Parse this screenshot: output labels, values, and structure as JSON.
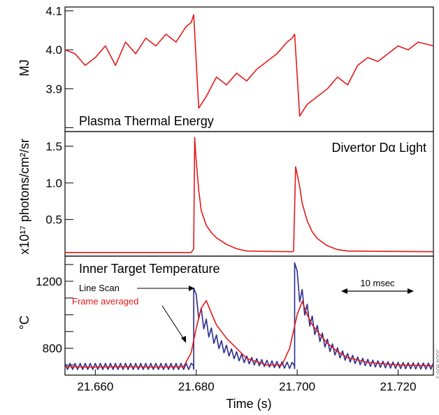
{
  "figure_id": "JG04 605-3",
  "chart_data": [
    {
      "type": "line",
      "panel": "top",
      "title": "Plasma Thermal Energy",
      "ylabel": "MJ",
      "xlim": [
        21.654,
        21.727
      ],
      "ylim": [
        3.79,
        4.11
      ],
      "yticks": [
        3.8,
        3.9,
        4.0,
        4.1
      ],
      "ytick_labels": [
        "",
        "3.9",
        "4.0",
        "4.1"
      ],
      "color": "#e41a1c",
      "series": [
        {
          "x": [
            21.654,
            21.656,
            21.658,
            21.66,
            21.662,
            21.664,
            21.666,
            21.668,
            21.67,
            21.672,
            21.674,
            21.676,
            21.678,
            21.679,
            21.6795,
            21.6805,
            21.682,
            21.684,
            21.686,
            21.688,
            21.69,
            21.692,
            21.694,
            21.696,
            21.698,
            21.699,
            21.6995,
            21.7005,
            21.702,
            21.704,
            21.706,
            21.708,
            21.71,
            21.712,
            21.714,
            21.716,
            21.718,
            21.72,
            21.722,
            21.724,
            21.727
          ],
          "values": [
            4.0,
            3.99,
            3.96,
            3.98,
            4.01,
            3.96,
            4.02,
            3.99,
            4.03,
            4.01,
            4.04,
            4.02,
            4.06,
            4.07,
            4.09,
            3.85,
            3.88,
            3.93,
            3.91,
            3.94,
            3.92,
            3.95,
            3.97,
            3.99,
            4.02,
            4.03,
            4.04,
            3.83,
            3.86,
            3.88,
            3.9,
            3.93,
            3.91,
            3.96,
            3.98,
            3.97,
            3.99,
            4.01,
            4.0,
            4.02,
            4.01
          ]
        }
      ]
    },
    {
      "type": "line",
      "panel": "middle",
      "title": "Divertor Dα Light",
      "ylabel": "x10¹⁷ photons/cm²/sr",
      "xlim": [
        21.654,
        21.727
      ],
      "ylim": [
        0,
        1.7
      ],
      "yticks": [
        0.5,
        1.0,
        1.5
      ],
      "ytick_labels": [
        "0.5",
        "1.0",
        "1.5"
      ],
      "color": "#e41a1c",
      "series": [
        {
          "x": [
            21.654,
            21.679,
            21.6795,
            21.6797,
            21.68,
            21.6805,
            21.681,
            21.682,
            21.683,
            21.684,
            21.686,
            21.688,
            21.69,
            21.699,
            21.6993,
            21.6997,
            21.7,
            21.7005,
            21.701,
            21.702,
            21.703,
            21.704,
            21.706,
            21.708,
            21.71,
            21.727
          ],
          "values": [
            0.05,
            0.05,
            0.1,
            1.62,
            1.3,
            0.9,
            0.62,
            0.42,
            0.32,
            0.25,
            0.16,
            0.1,
            0.07,
            0.06,
            0.07,
            1.22,
            1.12,
            0.95,
            0.72,
            0.48,
            0.33,
            0.24,
            0.14,
            0.09,
            0.07,
            0.06
          ]
        }
      ]
    },
    {
      "type": "line",
      "panel": "bottom",
      "title": "Inner Target Temperature",
      "ylabel": "°C",
      "xlabel": "Time (s)",
      "xlim": [
        21.654,
        21.727
      ],
      "xticks": [
        21.66,
        21.68,
        21.7,
        21.72
      ],
      "xtick_labels": [
        "21.660",
        "21.680",
        "21.700",
        "21.720"
      ],
      "ylim": [
        640,
        1350
      ],
      "yticks": [
        700,
        800,
        900,
        1000,
        1100,
        1200,
        1300
      ],
      "ytick_labels": [
        "",
        "800",
        "",
        "",
        "",
        "1200",
        ""
      ],
      "annotations": {
        "scale_bar": "10 msec",
        "scale_bar_x": [
          21.707,
          21.717
        ]
      },
      "series": [
        {
          "name": "Line Scan",
          "color": "#2b2b8c",
          "style": "sawtooth",
          "period": 0.001
        },
        {
          "name": "Frame averaged",
          "color": "#e41a1c",
          "x": [
            21.654,
            21.66,
            21.666,
            21.672,
            21.6775,
            21.679,
            21.68,
            21.681,
            21.682,
            21.683,
            21.684,
            21.686,
            21.688,
            21.69,
            21.694,
            21.697,
            21.6985,
            21.7,
            21.701,
            21.702,
            21.703,
            21.704,
            21.706,
            21.708,
            21.71,
            21.714,
            21.72,
            21.727
          ],
          "values": [
            690,
            688,
            690,
            688,
            690,
            775,
            920,
            1040,
            1085,
            1010,
            940,
            860,
            800,
            740,
            700,
            700,
            800,
            1000,
            1080,
            1000,
            940,
            900,
            830,
            780,
            745,
            715,
            700,
            695
          ]
        }
      ]
    }
  ]
}
